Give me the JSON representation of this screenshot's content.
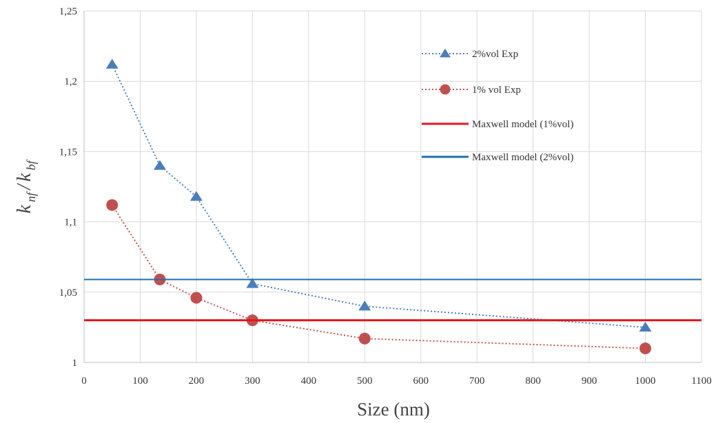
{
  "chart_data": {
    "type": "line",
    "xlabel": "Size (nm)",
    "ylabel": {
      "base1": "k",
      "sub1": "nf",
      "sep": "/",
      "base2": "k",
      "sub2": "bf"
    },
    "xlim": [
      0,
      1100
    ],
    "ylim": [
      1,
      1.25
    ],
    "x_ticks": [
      "0",
      "100",
      "200",
      "300",
      "400",
      "500",
      "600",
      "700",
      "800",
      "900",
      "1000",
      "1100"
    ],
    "y_ticks": [
      "1",
      "1,05",
      "1,1",
      "1,15",
      "1,2",
      "1,25"
    ],
    "grid": true,
    "legend_position": "top-right",
    "series": [
      {
        "name": "2%vol Exp",
        "style": "dotted-triangle",
        "color": "#4a7ebb",
        "x": [
          50,
          135,
          200,
          300,
          500,
          1000
        ],
        "y": [
          1.212,
          1.14,
          1.118,
          1.056,
          1.04,
          1.025
        ]
      },
      {
        "name": "1% vol Exp",
        "style": "dotted-circle",
        "color": "#c0504d",
        "x": [
          50,
          135,
          200,
          300,
          500,
          1000
        ],
        "y": [
          1.112,
          1.059,
          1.046,
          1.03,
          1.017,
          1.01
        ]
      },
      {
        "name": "Maxwell model (1%vol)",
        "style": "solid",
        "color": "#e8141c",
        "constant": 1.03
      },
      {
        "name": "Maxwell model (2%vol)",
        "style": "solid",
        "color": "#1f6fb2",
        "constant": 1.059
      }
    ]
  }
}
